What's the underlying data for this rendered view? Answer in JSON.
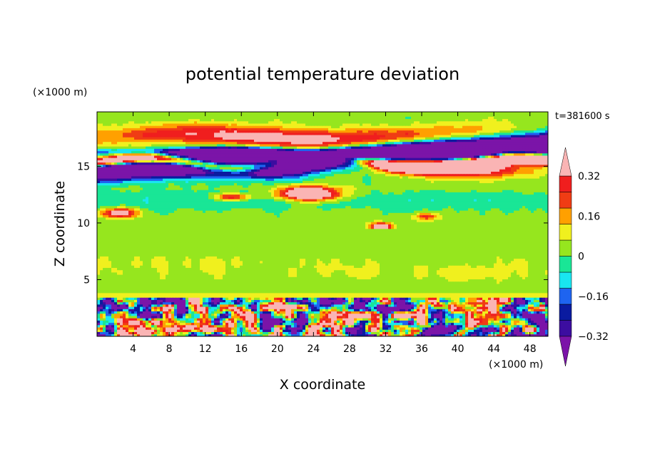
{
  "chart_data": {
    "type": "heatmap",
    "title": "potential temperature deviation",
    "xlabel": "X coordinate",
    "ylabel": "Z coordinate",
    "x_unit": "(×1000 m)",
    "y_unit": "(×1000 m)",
    "time_label": "t=381600 s",
    "xlim": [
      0,
      50
    ],
    "ylim": [
      0,
      19.8
    ],
    "x_ticks": [
      4,
      8,
      12,
      16,
      20,
      24,
      28,
      32,
      36,
      40,
      44,
      48
    ],
    "x_tick_labels": [
      "4",
      "8",
      "12",
      "16",
      "20",
      "24",
      "28",
      "32",
      "36",
      "40",
      "44",
      "48"
    ],
    "y_ticks": [
      5,
      10,
      15
    ],
    "y_tick_labels": [
      "5",
      "10",
      "15"
    ],
    "colorbar": {
      "levels": [
        -0.4,
        -0.32,
        -0.24,
        -0.16,
        -0.08,
        0,
        0.08,
        0.16,
        0.24,
        0.32,
        0.4
      ],
      "tick_values": [
        -0.32,
        -0.16,
        0,
        0.16,
        0.32
      ],
      "tick_labels": [
        "−0.32",
        "−0.16",
        "0",
        "0.16",
        "0.32"
      ],
      "colors": [
        "#7b14a8",
        "#3c0da0",
        "#0a1ba0",
        "#1e64f0",
        "#19e6f0",
        "#19e696",
        "#96e61e",
        "#f0f01e",
        "#ffa000",
        "#f03c14",
        "#f01e1e",
        "#fab4b4"
      ],
      "extend": "both"
    },
    "features": [
      {
        "name": "upper warm band",
        "x_range": [
          0,
          50
        ],
        "z_range": [
          17,
          19.8
        ],
        "sign": "positive",
        "max_value": 0.4
      },
      {
        "name": "tropopause cold layer",
        "x_range": [
          0,
          50
        ],
        "z_range": [
          14,
          16.5
        ],
        "sign": "negative",
        "min_value": -0.4
      },
      {
        "name": "warm lens",
        "x_range": [
          18,
          30
        ],
        "z_range": [
          11,
          13.5
        ],
        "sign": "positive",
        "max_value": 0.4
      },
      {
        "name": "boundary layer turbulence",
        "x_range": [
          0,
          50
        ],
        "z_range": [
          0,
          3.5
        ],
        "sign": "mixed"
      }
    ]
  }
}
